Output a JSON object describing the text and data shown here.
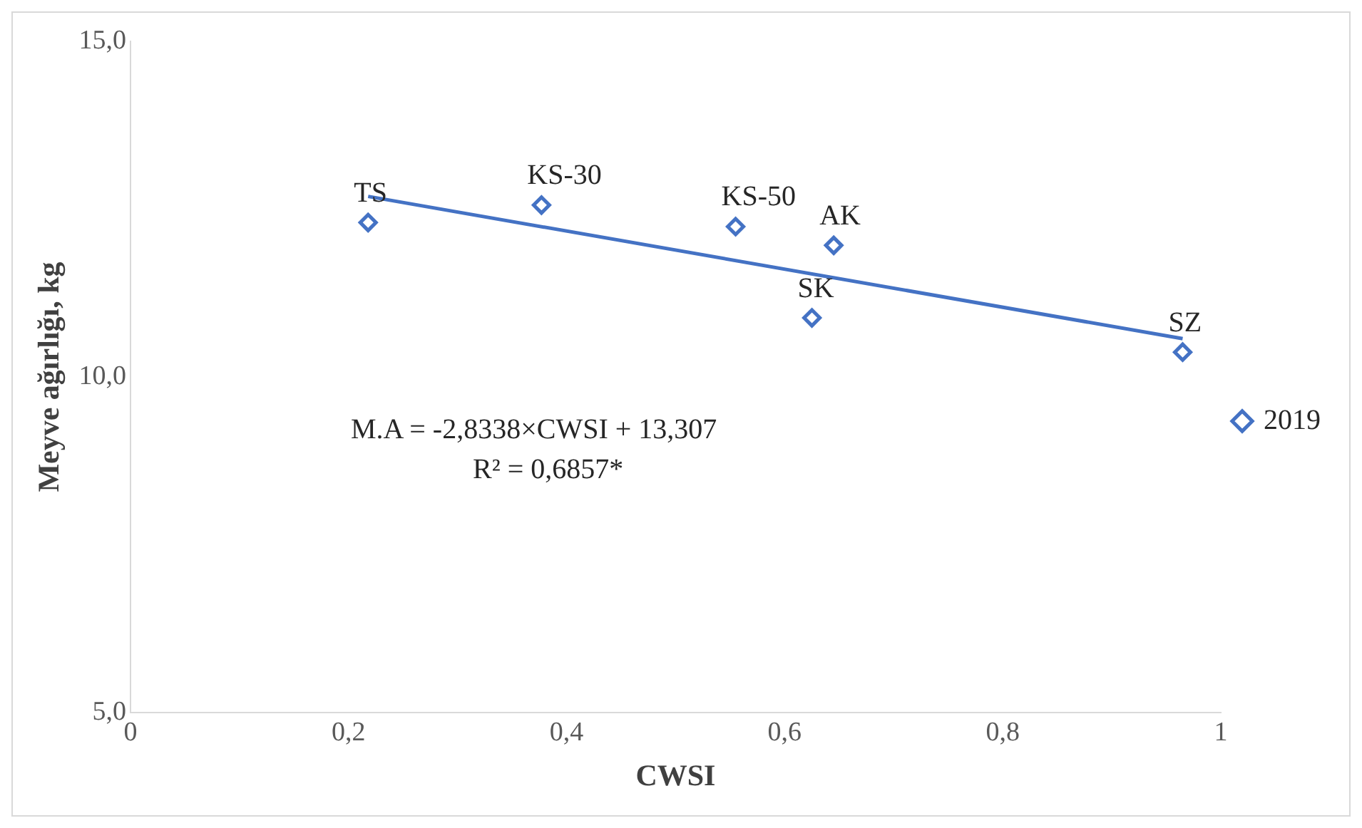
{
  "chart_data": {
    "type": "scatter",
    "xlabel": "CWSI",
    "ylabel": "Meyve ağırlığı, kg",
    "x": [
      0.218,
      0.377,
      0.555,
      0.645,
      0.625,
      0.965
    ],
    "series": [
      {
        "name": "2019",
        "color": "#4472c4",
        "values": [
          12.3,
          12.56,
          12.24,
          11.96,
          10.88,
          10.37
        ]
      },
      {
        "type": "line",
        "color": "#4472c4",
        "marker": "none",
        "x": [
          0.218,
          0.965
        ],
        "values": [
          12.69,
          10.57
        ]
      }
    ],
    "xlim": [
      0,
      1
    ],
    "xticks": [
      {
        "value": 0,
        "label": "0"
      },
      {
        "value": 0.2,
        "label": "0,2"
      },
      {
        "value": 0.4,
        "label": "0,4"
      },
      {
        "value": 0.6,
        "label": "0,6"
      },
      {
        "value": 0.8,
        "label": "0,8"
      },
      {
        "value": 1,
        "label": "1"
      }
    ],
    "ylim": [
      5,
      15
    ],
    "yticks": [
      {
        "value": 5,
        "label": "5,0"
      },
      {
        "value": 10,
        "label": "10,0"
      },
      {
        "value": 15,
        "label": "15,0"
      }
    ],
    "grid": false,
    "legend": "right",
    "marker": "diamond",
    "annotations": [
      {
        "text": "TS",
        "x": 0.218,
        "y": 12.3
      },
      {
        "text": "KS-30",
        "x": 0.377,
        "y": 12.56
      },
      {
        "text": "KS-50",
        "x": 0.555,
        "y": 12.24
      },
      {
        "text": "AK",
        "x": 0.645,
        "y": 11.96
      },
      {
        "text": "SK",
        "x": 0.625,
        "y": 10.88
      },
      {
        "text": "SZ",
        "x": 0.965,
        "y": 10.37
      },
      "M.A = -2,8338×CWSI + 13,307",
      "R² = 0,6857*"
    ]
  }
}
